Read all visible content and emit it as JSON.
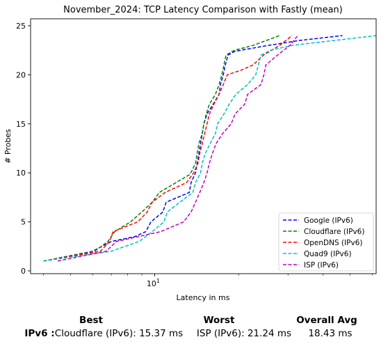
{
  "chart_data": {
    "type": "line",
    "title": "November_2024: TCP Latency Comparison with Fastly (mean)",
    "xlabel": "Latency in ms",
    "ylabel": "# Probes",
    "x_scale": "log",
    "xlim": [
      3.6,
      62
    ],
    "ylim": [
      0,
      25
    ],
    "x_tick_labels": [
      {
        "value": 10,
        "label": "10^1"
      }
    ],
    "y_ticks": [
      0,
      5,
      10,
      15,
      20,
      25
    ],
    "grid": false,
    "legend_position": "lower-right",
    "series": [
      {
        "name": "Google (IPv6)",
        "color": "#0000ff",
        "points": [
          [
            4,
            1
          ],
          [
            6,
            2
          ],
          [
            7,
            3
          ],
          [
            8.5,
            3.5
          ],
          [
            9.3,
            4
          ],
          [
            9.7,
            5
          ],
          [
            10.7,
            6
          ],
          [
            11,
            7
          ],
          [
            13.3,
            8
          ],
          [
            13.5,
            9
          ],
          [
            14,
            10
          ],
          [
            14.2,
            11
          ],
          [
            14.4,
            12
          ],
          [
            14.6,
            13
          ],
          [
            14.8,
            14
          ],
          [
            15,
            15
          ],
          [
            15.4,
            16
          ],
          [
            16.2,
            17
          ],
          [
            17,
            18
          ],
          [
            17.2,
            19
          ],
          [
            17.6,
            20
          ],
          [
            17.9,
            21
          ],
          [
            18.3,
            22
          ],
          [
            19.4,
            22.4
          ],
          [
            25.5,
            23
          ],
          [
            33,
            23.5
          ],
          [
            47,
            24
          ]
        ]
      },
      {
        "name": "Cloudflare (IPv6)",
        "color": "#008000",
        "points": [
          [
            4,
            1
          ],
          [
            6.1,
            2
          ],
          [
            6.8,
            3
          ],
          [
            7.2,
            4
          ],
          [
            8.2,
            5
          ],
          [
            9,
            6
          ],
          [
            9.8,
            7
          ],
          [
            10.4,
            8
          ],
          [
            13.3,
            9.8
          ],
          [
            13.6,
            10.2
          ],
          [
            14,
            11
          ],
          [
            14.2,
            12
          ],
          [
            14.4,
            13
          ],
          [
            14.8,
            14
          ],
          [
            15,
            15
          ],
          [
            15.3,
            16
          ],
          [
            15.7,
            17
          ],
          [
            16.5,
            18
          ],
          [
            17,
            19
          ],
          [
            17.4,
            20
          ],
          [
            17.7,
            21
          ],
          [
            18,
            22
          ],
          [
            19.3,
            22.5
          ],
          [
            22.5,
            23
          ],
          [
            28,
            24
          ]
        ]
      },
      {
        "name": "OpenDNS (IPv6)",
        "color": "#ff0000",
        "points": [
          [
            4,
            1
          ],
          [
            6.4,
            2
          ],
          [
            6.9,
            3
          ],
          [
            7.1,
            4
          ],
          [
            8.7,
            5
          ],
          [
            9.4,
            6
          ],
          [
            9.8,
            7
          ],
          [
            10.9,
            8
          ],
          [
            13,
            9
          ],
          [
            13.8,
            10
          ],
          [
            14.3,
            11
          ],
          [
            14.5,
            12
          ],
          [
            14.8,
            13
          ],
          [
            15.1,
            14
          ],
          [
            15.4,
            15
          ],
          [
            15.7,
            16
          ],
          [
            16.3,
            17
          ],
          [
            17,
            18
          ],
          [
            17.6,
            19
          ],
          [
            18.2,
            20
          ],
          [
            20.5,
            20.5
          ],
          [
            22.5,
            21
          ],
          [
            24.5,
            22
          ],
          [
            28,
            23
          ],
          [
            31,
            24
          ]
        ]
      },
      {
        "name": "Quad9 (IPv6)",
        "color": "#00bfbf",
        "points": [
          [
            4,
            1
          ],
          [
            7,
            2
          ],
          [
            8.8,
            3
          ],
          [
            9.8,
            4
          ],
          [
            10.8,
            5
          ],
          [
            11.1,
            6
          ],
          [
            12.3,
            7
          ],
          [
            13.7,
            8
          ],
          [
            14,
            9
          ],
          [
            14.6,
            10
          ],
          [
            14.8,
            11
          ],
          [
            15.2,
            12
          ],
          [
            15.8,
            13
          ],
          [
            16.5,
            14
          ],
          [
            16.8,
            15
          ],
          [
            17.7,
            16
          ],
          [
            18.5,
            17
          ],
          [
            19.5,
            18
          ],
          [
            21.5,
            19
          ],
          [
            23,
            20
          ],
          [
            23.5,
            21
          ],
          [
            24,
            22
          ],
          [
            26,
            22.5
          ],
          [
            31,
            23
          ],
          [
            62,
            24
          ]
        ]
      },
      {
        "name": "ISP (IPv6)",
        "color": "#bf00bf",
        "points": [
          [
            4.5,
            1
          ],
          [
            6.7,
            2
          ],
          [
            7.3,
            3
          ],
          [
            10.5,
            4
          ],
          [
            12.7,
            5
          ],
          [
            13.5,
            6
          ],
          [
            14,
            7
          ],
          [
            14.5,
            8
          ],
          [
            15,
            9
          ],
          [
            15.4,
            10
          ],
          [
            15.7,
            11
          ],
          [
            16.1,
            12
          ],
          [
            16.6,
            13
          ],
          [
            17.5,
            14
          ],
          [
            18.8,
            15
          ],
          [
            19.4,
            16
          ],
          [
            21,
            17
          ],
          [
            21.5,
            18
          ],
          [
            24,
            19
          ],
          [
            24.6,
            20
          ],
          [
            25,
            21
          ],
          [
            27.5,
            22
          ],
          [
            30.5,
            23
          ],
          [
            32.5,
            24
          ]
        ]
      }
    ]
  },
  "summary": {
    "headers": {
      "best": "Best",
      "worst": "Worst",
      "avg": "Overall Avg"
    },
    "row_label": "IPv6 :",
    "best": "Cloudflare (IPv6): 15.37 ms",
    "worst": "ISP (IPv6): 21.24 ms",
    "avg": "18.43 ms"
  }
}
